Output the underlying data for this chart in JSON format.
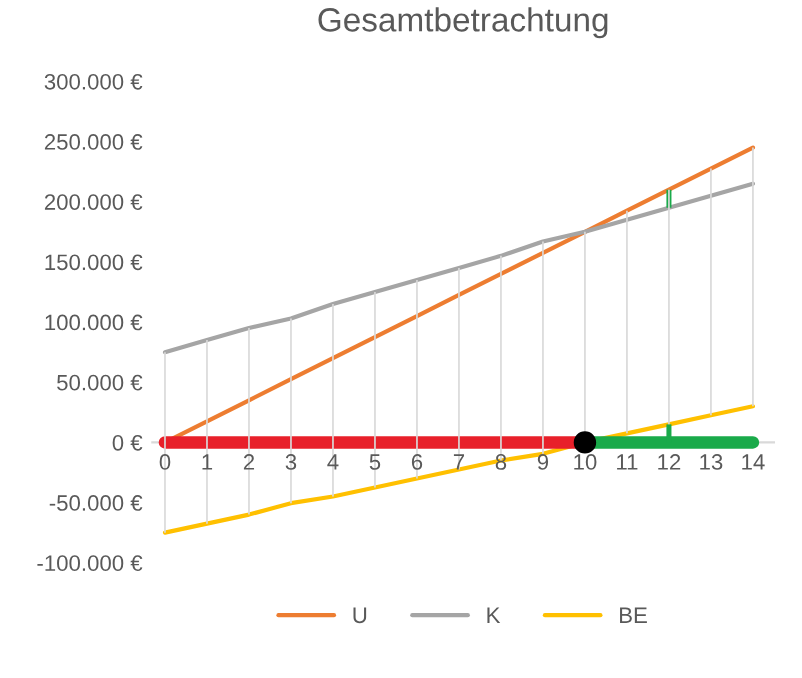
{
  "chart_data": {
    "type": "line",
    "title": "Gesamtbetrachtung",
    "categories": [
      "0",
      "1",
      "2",
      "3",
      "4",
      "5",
      "6",
      "7",
      "8",
      "9",
      "10",
      "11",
      "12",
      "13",
      "14"
    ],
    "series": [
      {
        "name": "U",
        "color": "#ed7d31",
        "values": [
          0,
          17500,
          35000,
          52500,
          70000,
          87500,
          105000,
          122500,
          140000,
          157500,
          175000,
          192500,
          210000,
          227500,
          245000
        ]
      },
      {
        "name": "K",
        "color": "#a5a5a5",
        "values": [
          75000,
          85000,
          95000,
          103000,
          115000,
          125000,
          135000,
          145000,
          155000,
          167000,
          175000,
          185000,
          195000,
          205000,
          215000
        ]
      },
      {
        "name": "BE",
        "color": "#ffc000",
        "values": [
          -75000,
          -67500,
          -60000,
          -50500,
          -45000,
          -37500,
          -30000,
          -22500,
          -15000,
          -9500,
          0,
          7500,
          15000,
          22500,
          30000
        ]
      },
      {
        "type": "bar",
        "color": "#d9d9d9",
        "values": [
          150000,
          152500,
          155000,
          153500,
          160000,
          162500,
          165000,
          167500,
          170000,
          176500,
          175000,
          185000,
          195000,
          205000,
          215000
        ],
        "base": [
          -75000,
          -67500,
          -60000,
          -50500,
          -45000,
          -37500,
          -30000,
          -22500,
          -15000,
          -9500,
          0,
          7500,
          15000,
          22500,
          30000
        ]
      },
      {
        "type": "line",
        "color": "#e8202a",
        "values": [
          0,
          0,
          0,
          0,
          0,
          0,
          0,
          0,
          0,
          0,
          0,
          null,
          null,
          null,
          null
        ]
      },
      {
        "type": "line",
        "color": "#1aaa4a",
        "values": [
          null,
          null,
          null,
          null,
          null,
          null,
          null,
          null,
          null,
          null,
          0,
          0,
          0,
          0,
          0
        ]
      },
      {
        "type": "bar",
        "color": "#1aaa4a",
        "values": [
          null,
          null,
          null,
          null,
          null,
          null,
          null,
          null,
          null,
          null,
          null,
          null,
          15000,
          null,
          null
        ],
        "base": [
          null,
          null,
          null,
          null,
          null,
          null,
          null,
          null,
          null,
          null,
          null,
          null,
          195000,
          null,
          null
        ]
      },
      {
        "type": "bar",
        "color": "#1aaa4a",
        "values": [
          null,
          null,
          null,
          null,
          null,
          null,
          null,
          null,
          null,
          null,
          null,
          null,
          15000,
          null,
          null
        ],
        "base": [
          null,
          null,
          null,
          null,
          null,
          null,
          null,
          null,
          null,
          null,
          null,
          null,
          0,
          null,
          null
        ]
      },
      {
        "type": "scatter",
        "color": "#000000",
        "values": [
          null,
          null,
          null,
          null,
          null,
          null,
          null,
          null,
          null,
          null,
          0,
          null,
          null,
          null,
          null
        ]
      }
    ],
    "ylim": [
      -100000,
      300000
    ],
    "yticks": [
      {
        "value": -100000,
        "label": "-100.000 €"
      },
      {
        "value": -50000,
        "label": "-50.000 €"
      },
      {
        "value": 0,
        "label": "0 €"
      },
      {
        "value": 50000,
        "label": "50.000 €"
      },
      {
        "value": 100000,
        "label": "100.000 €"
      },
      {
        "value": 150000,
        "label": "150.000 €"
      },
      {
        "value": 200000,
        "label": "200.000 €"
      },
      {
        "value": 250000,
        "label": "250.000 €"
      },
      {
        "value": 300000,
        "label": "300.000 €"
      }
    ],
    "grid": false,
    "legend": "bottom"
  }
}
